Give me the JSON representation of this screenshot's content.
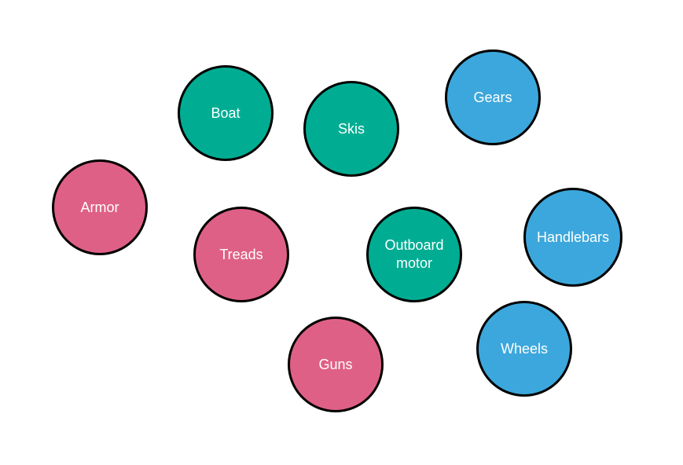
{
  "colors": {
    "green": "#00ad93",
    "blue": "#3ca7dc",
    "pink": "#df6086",
    "outline": "#000000",
    "label": "#ffffff"
  },
  "nodes": [
    {
      "id": "boat",
      "label": "Boat",
      "color": "green"
    },
    {
      "id": "skis",
      "label": "Skis",
      "color": "green"
    },
    {
      "id": "gears",
      "label": "Gears",
      "color": "blue"
    },
    {
      "id": "armor",
      "label": "Armor",
      "color": "pink"
    },
    {
      "id": "treads",
      "label": "Treads",
      "color": "pink"
    },
    {
      "id": "outboard",
      "label": "Outboard\nmotor",
      "color": "green"
    },
    {
      "id": "handlebars",
      "label": "Handlebars",
      "color": "blue"
    },
    {
      "id": "guns",
      "label": "Guns",
      "color": "pink"
    },
    {
      "id": "wheels",
      "label": "Wheels",
      "color": "blue"
    }
  ]
}
